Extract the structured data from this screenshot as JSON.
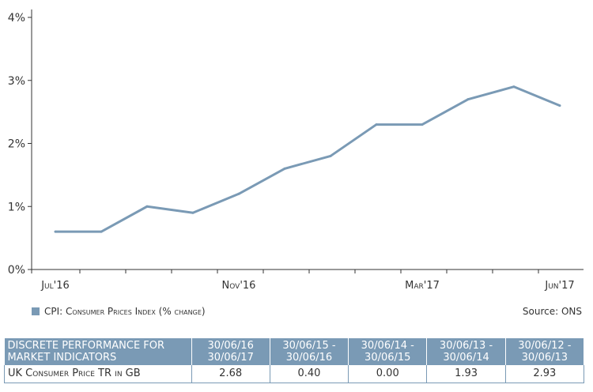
{
  "chart_data": {
    "type": "line",
    "x_ticks": [
      "Jul'16",
      "Nov'16",
      "Mar'17",
      "Jun'17"
    ],
    "x_tick_index": [
      0,
      4,
      8,
      11
    ],
    "series": [
      {
        "name": "CPI: Consumer Prices Index (% change)",
        "values": [
          0.6,
          0.6,
          1.0,
          0.9,
          1.2,
          1.6,
          1.8,
          2.3,
          2.3,
          2.7,
          2.9,
          2.6
        ],
        "color": "#7a9ab5"
      }
    ],
    "ylim": [
      0,
      4
    ],
    "y_ticks": [
      "0%",
      "1%",
      "2%",
      "3%",
      "4%"
    ],
    "y_tick_values": [
      0,
      1,
      2,
      3,
      4
    ],
    "grid": false,
    "source": "Source: ONS"
  },
  "table": {
    "header_label": "Discrete performance for market indicators",
    "periods": [
      "30/06/16\n30/06/17",
      "30/06/15 -\n30/06/16",
      "30/06/14 -\n30/06/15",
      "30/06/13 -\n30/06/14",
      "30/06/12 -\n30/06/13"
    ],
    "rows": [
      {
        "label": "UK Consumer Price TR in GB",
        "values": [
          "2.68",
          "0.40",
          "0.00",
          "1.93",
          "2.93"
        ]
      }
    ]
  }
}
